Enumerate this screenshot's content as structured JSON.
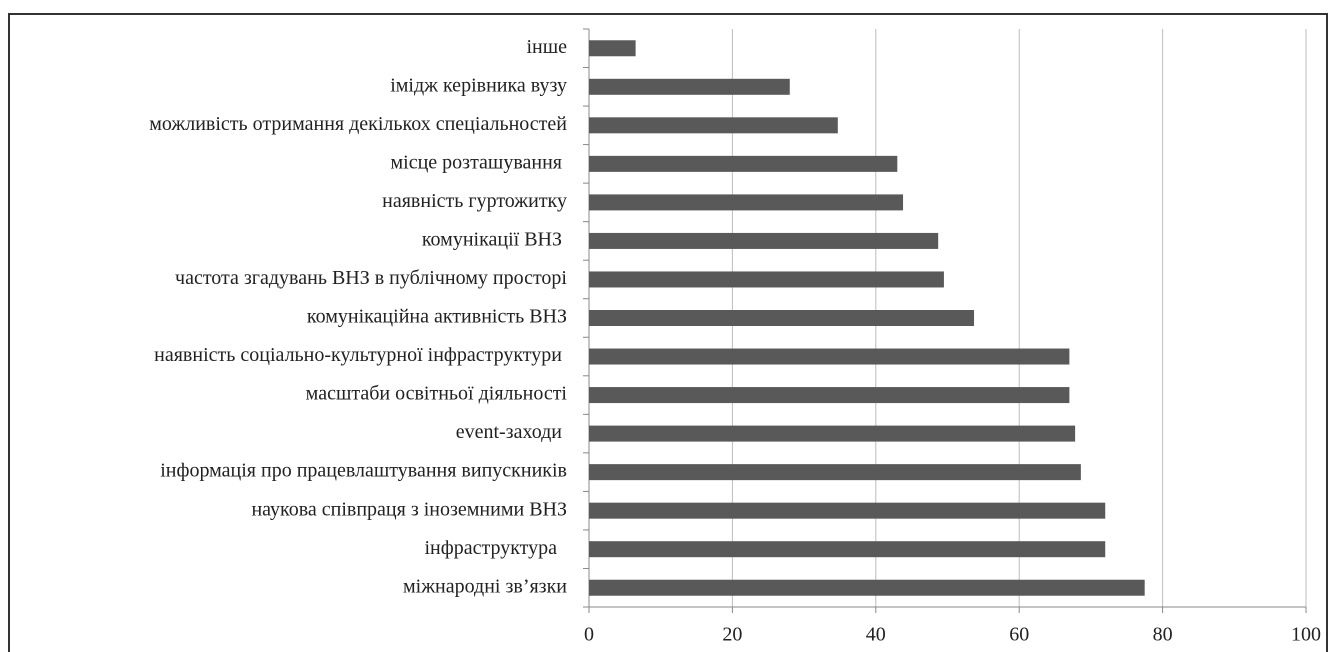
{
  "chart_data": {
    "type": "bar",
    "orientation": "horizontal",
    "categories": [
      "інше",
      "імідж керівника вузу",
      "можливість отримання декількох спеціальностей",
      "місце розташування ",
      "наявність гуртожитку",
      "комунікації ВНЗ ",
      "частота згадувань ВНЗ в публічному просторі",
      "комунікаційна активність ВНЗ",
      "наявність соціально-культурної інфраструктури ",
      "масштаби освітньої діяльності",
      "event-заходи ",
      "інформація про працевлаштування випускників",
      "наукова співпраця з іноземними ВНЗ",
      "інфраструктура  ",
      "міжнародні зв’язки"
    ],
    "values": [
      6.5,
      28,
      34.7,
      43,
      43.8,
      48.7,
      49.5,
      53.7,
      67,
      67,
      67.8,
      68.6,
      72,
      72,
      77.5
    ],
    "color": "#595959",
    "xlim": [
      0,
      100
    ],
    "xticks": [
      0,
      20,
      40,
      60,
      80,
      100
    ],
    "grid": true
  }
}
